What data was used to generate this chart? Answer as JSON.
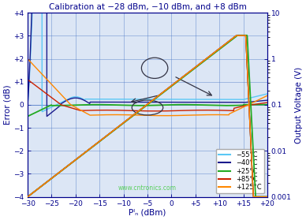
{
  "title": "Calibration at −28 dBm, −10 dBm, and +8 dBm",
  "xlabel": "Pᴵₙ (dBm)",
  "ylabel_left": "Error (dB)",
  "ylabel_right": "Output Voltage (V)",
  "x_min": -30,
  "x_max": 20,
  "y_left_min": -4,
  "y_left_max": 4,
  "y_right_min": 0.001,
  "y_right_max": 10,
  "colors": {
    "m55": "#5bc8f5",
    "m40": "#1a1a8c",
    "p25": "#22aa22",
    "p85": "#cc2200",
    "p125": "#ff8800"
  },
  "legend_labels": [
    "−55°C",
    "−40°C",
    "+25°C",
    "+85°C",
    "+125°C"
  ],
  "bg_color": "#dce6f5",
  "grid_color": "#4472c4",
  "title_color": "#00008b",
  "axis_label_color": "#00008b",
  "tick_color": "#00008b",
  "watermark": "www.cntronics.com",
  "watermark_color": "#44cc44"
}
